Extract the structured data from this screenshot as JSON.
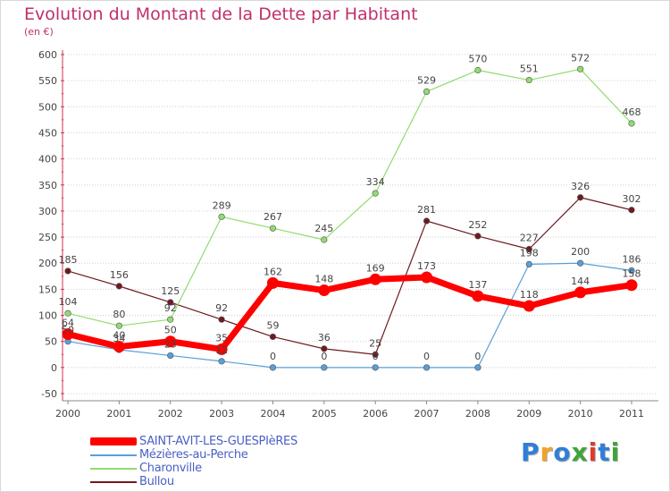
{
  "header": {
    "title": "Evolution du Montant de la Dette par Habitant",
    "subtitle": "(en €)"
  },
  "chart_data": {
    "type": "line",
    "title": "Evolution du Montant de la Dette par Habitant",
    "subtitle": "(en €)",
    "xlabel": "",
    "ylabel": "",
    "categories": [
      "2000",
      "2001",
      "2002",
      "2003",
      "2004",
      "2005",
      "2006",
      "2007",
      "2008",
      "2009",
      "2010",
      "2011"
    ],
    "ylim": [
      -50,
      600
    ],
    "yticks": [
      -50,
      0,
      50,
      100,
      150,
      200,
      250,
      300,
      350,
      400,
      450,
      500,
      550,
      600
    ],
    "grid": "horizontal dotted",
    "legend_position": "bottom-left",
    "series": [
      {
        "name": "Bullou",
        "color": "#6e1a1f",
        "values": [
          185,
          156,
          125,
          92,
          59,
          36,
          25,
          281,
          252,
          227,
          326,
          302
        ]
      },
      {
        "name": "Charonville",
        "color": "#90dc6e",
        "values": [
          104,
          80,
          92,
          289,
          267,
          245,
          334,
          529,
          570,
          551,
          572,
          468
        ]
      },
      {
        "name": "Mézières-au-Perche",
        "color": "#5a9fd8",
        "values": [
          50,
          34,
          23,
          12,
          0,
          0,
          0,
          0,
          0,
          198,
          200,
          186
        ]
      },
      {
        "name": "SAINT-AVIT-LES-GUESPIèRES",
        "color": "#ff0000",
        "values": [
          64,
          40,
          50,
          35,
          162,
          148,
          169,
          173,
          137,
          118,
          144,
          158
        ]
      }
    ],
    "data_labels": {
      "Bullou": [
        "185",
        "156",
        "125",
        "92",
        "59",
        "36",
        "25",
        "281",
        "252",
        "227",
        "326",
        "302"
      ],
      "Charonville": [
        "104",
        "80",
        "92",
        "289",
        "267",
        "245",
        "334",
        "529",
        "570",
        "551",
        "572",
        "468"
      ],
      "Mézières-au-Perche": [
        "50",
        "34",
        "23",
        "12",
        "0",
        "0",
        "0",
        "0",
        "0",
        "198",
        "200",
        "186"
      ],
      "SAINT-AVIT-LES-GUESPIèRES": [
        "64",
        "40",
        "50",
        "35",
        "162",
        "148",
        "169",
        "173",
        "137",
        "118",
        "144",
        "158"
      ]
    }
  },
  "legend": {
    "items": [
      {
        "label": "SAINT-AVIT-LES-GUESPIèRES",
        "color": "#ff0000"
      },
      {
        "label": "Mézières-au-Perche",
        "color": "#5a9fd8"
      },
      {
        "label": "Charonville",
        "color": "#90dc6e"
      },
      {
        "label": "Bullou",
        "color": "#6e1a1f"
      }
    ]
  },
  "logo": {
    "letters": [
      "P",
      "r",
      "o",
      "x",
      "i",
      "t",
      "i"
    ],
    "colors": [
      "#2f7fd6",
      "#f2a12a",
      "#2f7fd6",
      "#3fa53a",
      "#e23a2a",
      "#2f7fd6",
      "#3fa53a"
    ]
  }
}
